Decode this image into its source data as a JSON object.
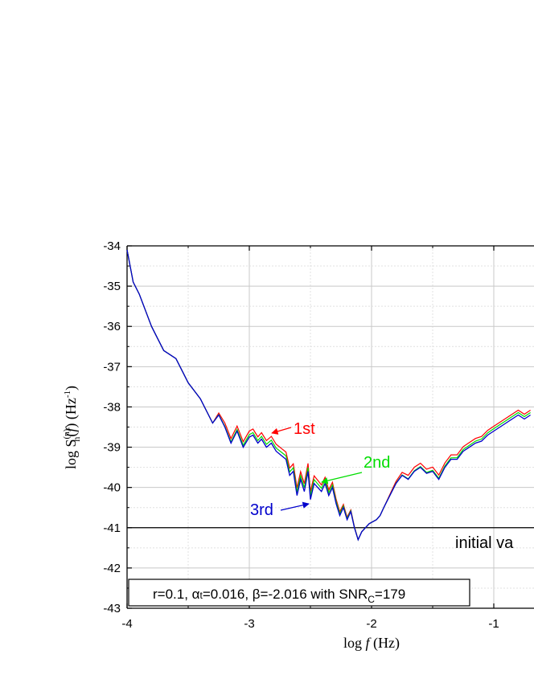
{
  "chart_data": {
    "type": "line",
    "xlabel": {
      "prefix": "log ",
      "var": "f",
      "suffix": " (Hz)"
    },
    "ylabel": {
      "prefix": "log S",
      "sub": "h",
      "sup": "(n)",
      "mid": "(",
      "var": "f",
      "end": ") (Hz",
      "unit_sup": "-1",
      "close": ")"
    },
    "xlim": [
      -4,
      -0.7
    ],
    "ylim": [
      -43,
      -34
    ],
    "x_ticks": [
      -4,
      -3,
      -2,
      -1
    ],
    "x_tick_labels": [
      "-4",
      "-3",
      "-2",
      "-1"
    ],
    "y_ticks": [
      -34,
      -35,
      -36,
      -37,
      -38,
      -39,
      -40,
      -41,
      -42,
      -43
    ],
    "y_tick_labels": [
      "-34",
      "-35",
      "-36",
      "-37",
      "-38",
      "-39",
      "-40",
      "-41",
      "-42",
      "-43"
    ],
    "grid": true,
    "reference_line": {
      "y": -41,
      "label": "initial va"
    },
    "colors": {
      "first": "#ff0000",
      "second": "#00dd00",
      "third": "#0000cc",
      "reference": "#000000"
    },
    "series": [
      {
        "name": "1st",
        "color": "#ff0000",
        "offset_segments": [
          [
            -3.3,
            0.0
          ],
          [
            -3.2,
            0.1
          ],
          [
            -3.0,
            0.15
          ],
          [
            -2.5,
            0.2
          ],
          [
            -2.3,
            0.12
          ],
          [
            -2.1,
            0.0
          ],
          [
            -1.9,
            0.0
          ],
          [
            -1.7,
            0.1
          ],
          [
            -1.0,
            0.12
          ],
          [
            -0.7,
            0.12
          ]
        ]
      },
      {
        "name": "2nd",
        "color": "#00dd00",
        "offset_segments": [
          [
            -3.3,
            0.0
          ],
          [
            -3.0,
            0.06
          ],
          [
            -2.5,
            0.1
          ],
          [
            -2.3,
            0.06
          ],
          [
            -2.1,
            0.0
          ],
          [
            -1.9,
            0.0
          ],
          [
            -1.0,
            0.06
          ],
          [
            -0.7,
            0.06
          ]
        ]
      },
      {
        "name": "3rd",
        "color": "#0000cc",
        "x": [
          -4.0,
          -3.95,
          -3.9,
          -3.85,
          -3.8,
          -3.75,
          -3.7,
          -3.65,
          -3.6,
          -3.55,
          -3.5,
          -3.45,
          -3.4,
          -3.35,
          -3.3,
          -3.25,
          -3.2,
          -3.15,
          -3.1,
          -3.05,
          -3.0,
          -2.97,
          -2.93,
          -2.9,
          -2.86,
          -2.82,
          -2.78,
          -2.74,
          -2.7,
          -2.67,
          -2.64,
          -2.61,
          -2.58,
          -2.55,
          -2.52,
          -2.5,
          -2.47,
          -2.44,
          -2.41,
          -2.38,
          -2.35,
          -2.32,
          -2.29,
          -2.26,
          -2.23,
          -2.2,
          -2.17,
          -2.14,
          -2.11,
          -2.08,
          -2.05,
          -2.02,
          -1.99,
          -1.96,
          -1.93,
          -1.9,
          -1.85,
          -1.8,
          -1.75,
          -1.7,
          -1.65,
          -1.6,
          -1.55,
          -1.5,
          -1.45,
          -1.4,
          -1.35,
          -1.3,
          -1.25,
          -1.2,
          -1.15,
          -1.1,
          -1.05,
          -1.0,
          -0.95,
          -0.9,
          -0.85,
          -0.8,
          -0.75,
          -0.7
        ],
        "y": [
          -34.1,
          -34.9,
          -35.2,
          -35.6,
          -36.0,
          -36.3,
          -36.6,
          -36.7,
          -36.8,
          -37.1,
          -37.4,
          -37.6,
          -37.8,
          -38.1,
          -38.4,
          -38.2,
          -38.5,
          -38.9,
          -38.6,
          -39.0,
          -38.75,
          -38.7,
          -38.9,
          -38.8,
          -39.0,
          -38.9,
          -39.1,
          -39.2,
          -39.3,
          -39.7,
          -39.6,
          -40.2,
          -39.8,
          -40.1,
          -39.6,
          -40.3,
          -39.9,
          -40.0,
          -40.1,
          -39.9,
          -40.2,
          -40.0,
          -40.4,
          -40.7,
          -40.5,
          -40.8,
          -40.6,
          -41.0,
          -41.3,
          -41.1,
          -41.0,
          -40.9,
          -40.85,
          -40.8,
          -40.7,
          -40.5,
          -40.2,
          -39.9,
          -39.7,
          -39.8,
          -39.6,
          -39.5,
          -39.65,
          -39.6,
          -39.8,
          -39.5,
          -39.3,
          -39.3,
          -39.1,
          -39.0,
          -38.9,
          -38.85,
          -38.7,
          -38.6,
          -38.5,
          -38.4,
          -38.3,
          -38.2,
          -38.3,
          -38.2
        ]
      }
    ],
    "annotations": [
      {
        "text": "1st",
        "color": "#ff0000"
      },
      {
        "text": "2nd",
        "color": "#00dd00"
      },
      {
        "text": "3rd",
        "color": "#0000cc"
      }
    ],
    "legend_box": {
      "text_parts": [
        "r=0.1, ",
        "α",
        "t",
        "=0.016, β=-2.016 with SNR",
        "C",
        "=179"
      ]
    }
  }
}
